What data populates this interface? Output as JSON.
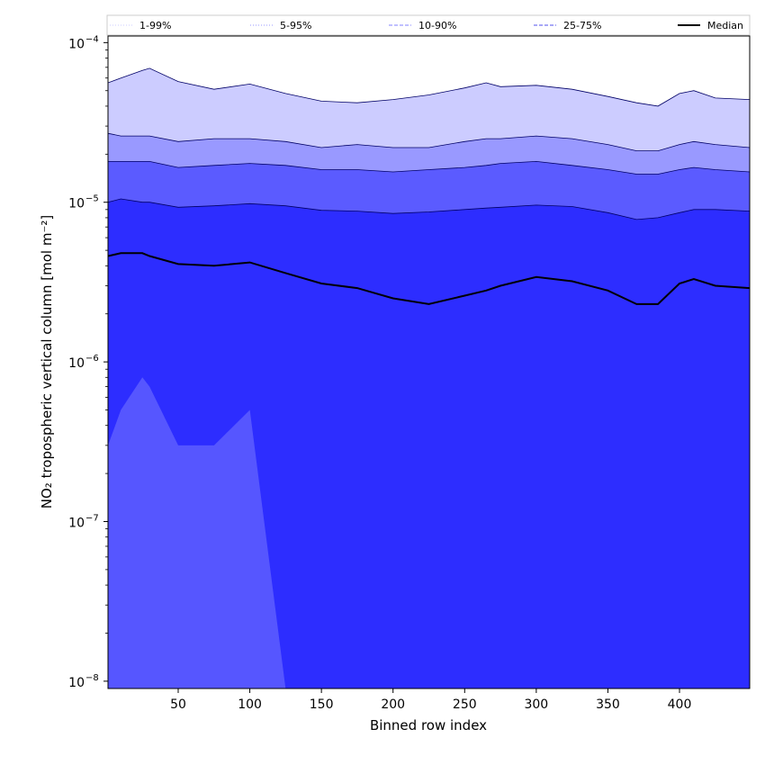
{
  "chart_data": {
    "type": "area",
    "xlabel": "Binned row index",
    "ylabel": "NO₂ tropospheric vertical column [mol m⁻²]",
    "x_scale": "linear",
    "y_scale": "log",
    "xlim": [
      1,
      449
    ],
    "ylim": [
      9e-09,
      0.00011
    ],
    "x_ticks": [
      50,
      100,
      150,
      200,
      250,
      300,
      350,
      400
    ],
    "x_tick_labels": [
      "50",
      "100",
      "150",
      "200",
      "250",
      "300",
      "350",
      "400"
    ],
    "y_ticks": [
      1e-08,
      1e-07,
      1e-06,
      1e-05,
      0.0001
    ],
    "y_tick_mantissa": [
      "10",
      "10",
      "10",
      "10",
      "10"
    ],
    "y_tick_exponent": [
      "−8",
      "−7",
      "−6",
      "−5",
      "−4"
    ],
    "grid": false,
    "legend_placement": "top",
    "legend": [
      {
        "label": "1-99%",
        "style": "dotted",
        "color": "#ccccff"
      },
      {
        "label": "5-95%",
        "style": "dotted",
        "color": "#9999ff"
      },
      {
        "label": "10-90%",
        "style": "dashed",
        "color": "#8080ff"
      },
      {
        "label": "25-75%",
        "style": "dashed",
        "color": "#5050ee"
      },
      {
        "label": "Median",
        "style": "solid",
        "color": "#000000"
      }
    ],
    "x_key": [
      1,
      10,
      25,
      30,
      50,
      75,
      100,
      125,
      150,
      175,
      200,
      225,
      250,
      265,
      275,
      300,
      325,
      350,
      370,
      385,
      400,
      410,
      425,
      449
    ],
    "series": [
      {
        "name": "99%",
        "values": [
          5.6e-05,
          6e-05,
          6.7e-05,
          6.9e-05,
          5.7e-05,
          5.1e-05,
          5.5e-05,
          4.8e-05,
          4.3e-05,
          4.2e-05,
          4.4e-05,
          4.7e-05,
          5.2e-05,
          5.6e-05,
          5.3e-05,
          5.4e-05,
          5.1e-05,
          4.6e-05,
          4.2e-05,
          4e-05,
          4.8e-05,
          5e-05,
          4.5e-05,
          4.4e-05
        ],
        "color": "#ccccff"
      },
      {
        "name": "95%",
        "values": [
          2.7e-05,
          2.6e-05,
          2.6e-05,
          2.6e-05,
          2.4e-05,
          2.5e-05,
          2.5e-05,
          2.4e-05,
          2.2e-05,
          2.3e-05,
          2.2e-05,
          2.2e-05,
          2.4e-05,
          2.5e-05,
          2.5e-05,
          2.6e-05,
          2.5e-05,
          2.3e-05,
          2.1e-05,
          2.1e-05,
          2.3e-05,
          2.4e-05,
          2.3e-05,
          2.2e-05
        ],
        "color": "#9999ff"
      },
      {
        "name": "90%",
        "values": [
          1.8e-05,
          1.8e-05,
          1.8e-05,
          1.8e-05,
          1.65e-05,
          1.7e-05,
          1.75e-05,
          1.7e-05,
          1.6e-05,
          1.6e-05,
          1.55e-05,
          1.6e-05,
          1.65e-05,
          1.7e-05,
          1.75e-05,
          1.8e-05,
          1.7e-05,
          1.6e-05,
          1.5e-05,
          1.5e-05,
          1.6e-05,
          1.65e-05,
          1.6e-05,
          1.55e-05
        ],
        "color": "#5b5bff"
      },
      {
        "name": "75%",
        "values": [
          1e-05,
          1.05e-05,
          1e-05,
          1e-05,
          9.3e-06,
          9.5e-06,
          9.8e-06,
          9.5e-06,
          8.9e-06,
          8.8e-06,
          8.5e-06,
          8.7e-06,
          9e-06,
          9.2e-06,
          9.3e-06,
          9.6e-06,
          9.4e-06,
          8.6e-06,
          7.8e-06,
          8e-06,
          8.6e-06,
          9e-06,
          9e-06,
          8.8e-06
        ],
        "color": "#2d2dff"
      },
      {
        "name": "Median",
        "values": [
          4.6e-06,
          4.8e-06,
          4.8e-06,
          4.6e-06,
          4.1e-06,
          4e-06,
          4.2e-06,
          3.6e-06,
          3.1e-06,
          2.9e-06,
          2.5e-06,
          2.3e-06,
          2.6e-06,
          2.8e-06,
          3e-06,
          3.4e-06,
          3.2e-06,
          2.8e-06,
          2.3e-06,
          2.3e-06,
          3.1e-06,
          3.3e-06,
          3e-06,
          2.9e-06
        ],
        "color": "#000000"
      },
      {
        "name": "25%",
        "values": [
          3e-07,
          5e-07,
          8e-07,
          7e-07,
          3e-07,
          3e-07,
          5e-07,
          9e-09,
          9e-09,
          9e-09,
          9e-09,
          9e-09,
          9e-09,
          9e-09,
          9e-09,
          9e-09,
          9e-09,
          9e-09,
          9e-09,
          9e-09,
          9e-09,
          9e-09,
          9e-09,
          9e-09
        ],
        "color": "#5b5bff"
      },
      {
        "name": "10%",
        "values": [
          9e-09,
          9e-09,
          9e-09,
          9e-09,
          9e-09,
          9e-09,
          9e-09,
          9e-09,
          9e-09,
          9e-09,
          9e-09,
          9e-09,
          9e-09,
          9e-09,
          9e-09,
          9e-09,
          9e-09,
          9e-09,
          9e-09,
          9e-09,
          9e-09,
          9e-09,
          9e-09,
          9e-09
        ],
        "color": "#2d2dff"
      }
    ]
  }
}
